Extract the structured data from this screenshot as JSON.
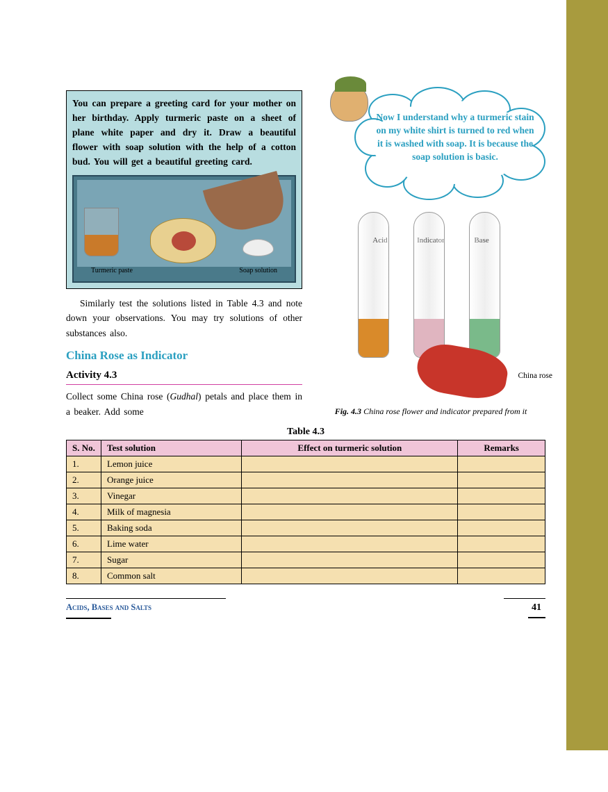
{
  "info_box": {
    "text": "You can prepare a greeting card for your mother on her birthday. Apply turmeric paste on a sheet of plane white paper and dry it. Draw a beautiful flower with soap solution with the help of a cotton bud. You will get a beautiful greeting card.",
    "label_left": "Turmeric paste",
    "label_right": "Soap solution"
  },
  "body_para": "Similarly test the solutions listed in Table 4.3 and note down your observations. You may try solutions of other substances also.",
  "section_heading": "China Rose as Indicator",
  "activity_heading": "Activity 4.3",
  "activity_para_prefix": "Collect some China rose (",
  "activity_para_em": "Gudhal",
  "activity_para_suffix": ") petals and place them in a beaker. Add some",
  "bubble_text": "Now I understand why a turmeric stain on my white shirt is turned to red when it is washed with soap. It is because the soap solution is basic.",
  "tubes": {
    "label1": "Acid",
    "label2": "Indicator",
    "label3": "Base",
    "rose_label": "China rose"
  },
  "fig_caption_prefix": "Fig. 4.3",
  "fig_caption_text": "  China rose flower and indicator prepared from it",
  "table": {
    "title": "Table 4.3",
    "headers": [
      "S. No.",
      "Test solution",
      "Effect on turmeric solution",
      "Remarks"
    ],
    "rows": [
      [
        "1.",
        "Lemon juice",
        "",
        ""
      ],
      [
        "2.",
        "Orange juice",
        "",
        ""
      ],
      [
        "3.",
        "Vinegar",
        "",
        ""
      ],
      [
        "4.",
        "Milk of magnesia",
        "",
        ""
      ],
      [
        "5.",
        "Baking soda",
        "",
        ""
      ],
      [
        "6.",
        "Lime water",
        "",
        ""
      ],
      [
        "7.",
        "Sugar",
        "",
        ""
      ],
      [
        "8.",
        "Common salt",
        "",
        ""
      ]
    ]
  },
  "footer": {
    "title": "Acids, Bases and Salts",
    "page": "41"
  }
}
